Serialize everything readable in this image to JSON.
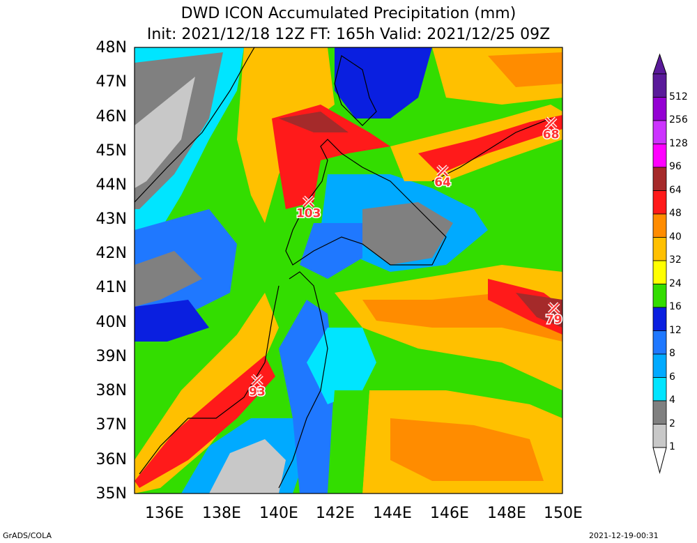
{
  "title": "DWD ICON Accumulated Precipitation (mm)",
  "subtitle": "Init: 2021/12/18 12Z  FT: 165h  Valid: 2021/12/25 09Z",
  "lat_labels": [
    "48N",
    "47N",
    "46N",
    "45N",
    "44N",
    "43N",
    "42N",
    "41N",
    "40N",
    "39N",
    "38N",
    "37N",
    "36N",
    "35N"
  ],
  "lon_labels": [
    "136E",
    "138E",
    "140E",
    "142E",
    "144E",
    "146E",
    "148E",
    "150E"
  ],
  "colorbar": {
    "levels": [
      "512",
      "256",
      "128",
      "96",
      "64",
      "48",
      "40",
      "32",
      "24",
      "16",
      "12",
      "8",
      "6",
      "4",
      "2",
      "1"
    ],
    "colors": [
      "#5a1a9a",
      "#9400d3",
      "#cc33ff",
      "#ff00ff",
      "#a52a2a",
      "#ff1a1a",
      "#ff8c00",
      "#ffc000",
      "#ffff00",
      "#33dd00",
      "#0a1fe0",
      "#1f78ff",
      "#00aaff",
      "#00e5ff",
      "#808080",
      "#c8c8c8"
    ]
  },
  "markers": [
    {
      "label": "103",
      "lon": 141.1,
      "lat": 43.5
    },
    {
      "label": "64",
      "lon": 145.8,
      "lat": 44.4
    },
    {
      "label": "68",
      "lon": 149.6,
      "lat": 45.8
    },
    {
      "label": "79",
      "lon": 149.7,
      "lat": 40.4
    },
    {
      "label": "93",
      "lon": 139.3,
      "lat": 38.3
    }
  ],
  "footer_left": "GrADS/COLA",
  "footer_right": "2021-12-19-00:31"
}
